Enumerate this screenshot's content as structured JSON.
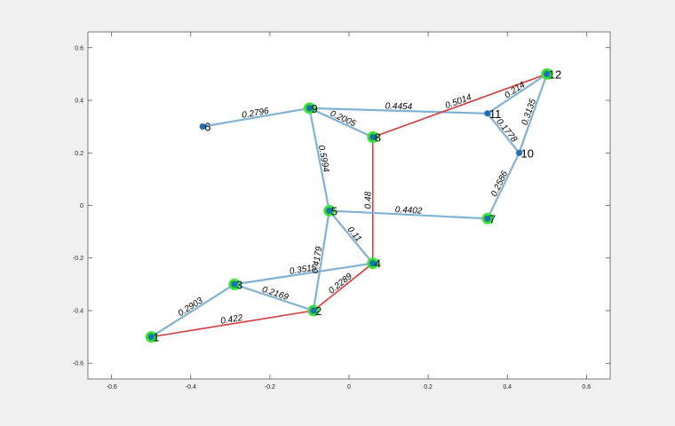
{
  "chart_data": {
    "type": "graph",
    "xlim": [
      -0.66,
      0.66
    ],
    "ylim": [
      -0.66,
      0.66
    ],
    "xticks": [
      {
        "value": -0.6,
        "label": "-0.6"
      },
      {
        "value": -0.4,
        "label": "-0.4"
      },
      {
        "value": -0.2,
        "label": "-0.2"
      },
      {
        "value": 0,
        "label": "0"
      },
      {
        "value": 0.2,
        "label": "0.2"
      },
      {
        "value": 0.4,
        "label": "0.4"
      },
      {
        "value": 0.6,
        "label": "0.6"
      }
    ],
    "yticks": [
      {
        "value": 0.6,
        "label": "0.6"
      },
      {
        "value": 0.4,
        "label": "0.4"
      },
      {
        "value": 0.2,
        "label": "0.2"
      },
      {
        "value": 0,
        "label": "0"
      },
      {
        "value": -0.2,
        "label": "-0.2"
      },
      {
        "value": -0.4,
        "label": "-0.4"
      },
      {
        "value": -0.6,
        "label": "-0.6"
      }
    ],
    "grid": false,
    "colors": {
      "background": "#f0f0f0",
      "axes_background": "#ffffff",
      "axes_box": "#262626",
      "edge": "#7fb2d5",
      "path_edge": "#d9383a",
      "node": "#1f6fb5",
      "node_highlight": "#33e633"
    },
    "nodes": [
      {
        "id": "1",
        "label": "1",
        "x": -0.5,
        "y": -0.5,
        "highlight": true
      },
      {
        "id": "2",
        "label": "2",
        "x": -0.09,
        "y": -0.4,
        "highlight": true
      },
      {
        "id": "3",
        "label": "3",
        "x": -0.29,
        "y": -0.3,
        "highlight": true
      },
      {
        "id": "4",
        "label": "4",
        "x": 0.06,
        "y": -0.22,
        "highlight": true
      },
      {
        "id": "5",
        "label": "5",
        "x": -0.05,
        "y": -0.02,
        "highlight": true
      },
      {
        "id": "6",
        "label": "6",
        "x": -0.37,
        "y": 0.3,
        "highlight": false
      },
      {
        "id": "7",
        "label": "7",
        "x": 0.35,
        "y": -0.05,
        "highlight": true
      },
      {
        "id": "8",
        "label": "8",
        "x": 0.06,
        "y": 0.26,
        "highlight": true
      },
      {
        "id": "9",
        "label": "9",
        "x": -0.1,
        "y": 0.37,
        "highlight": true
      },
      {
        "id": "10",
        "label": "10",
        "x": 0.43,
        "y": 0.2,
        "highlight": false
      },
      {
        "id": "11",
        "label": "11",
        "x": 0.35,
        "y": 0.35,
        "highlight": false
      },
      {
        "id": "12",
        "label": "12",
        "x": 0.5,
        "y": 0.5,
        "highlight": true
      }
    ],
    "edges": [
      {
        "from": "1",
        "to": "3",
        "weight": "0.2903",
        "path": false
      },
      {
        "from": "1",
        "to": "2",
        "weight": "0.422",
        "path": true
      },
      {
        "from": "3",
        "to": "2",
        "weight": "0.2169",
        "path": false
      },
      {
        "from": "3",
        "to": "4",
        "weight": "0.3515",
        "path": false
      },
      {
        "from": "2",
        "to": "5",
        "weight": "0.4179",
        "path": false
      },
      {
        "from": "2",
        "to": "4",
        "weight": "0.2289",
        "path": true
      },
      {
        "from": "5",
        "to": "4",
        "weight": "0.11",
        "path": false
      },
      {
        "from": "4",
        "to": "8",
        "weight": "0.48",
        "path": true
      },
      {
        "from": "5",
        "to": "7",
        "weight": "0.4402",
        "path": false
      },
      {
        "from": "9",
        "to": "5",
        "weight": "0.5994",
        "path": false
      },
      {
        "from": "6",
        "to": "9",
        "weight": "0.2796",
        "path": false
      },
      {
        "from": "9",
        "to": "8",
        "weight": "0.2005",
        "path": false
      },
      {
        "from": "9",
        "to": "11",
        "weight": "0.4454",
        "path": false
      },
      {
        "from": "8",
        "to": "12",
        "weight": "0.5014",
        "path": true
      },
      {
        "from": "11",
        "to": "12",
        "weight": "0.214",
        "path": false
      },
      {
        "from": "11",
        "to": "10",
        "weight": "0.1778",
        "path": false
      },
      {
        "from": "12",
        "to": "10",
        "weight": "0.3135",
        "path": false
      },
      {
        "from": "7",
        "to": "10",
        "weight": "0.2586",
        "path": false
      }
    ]
  }
}
